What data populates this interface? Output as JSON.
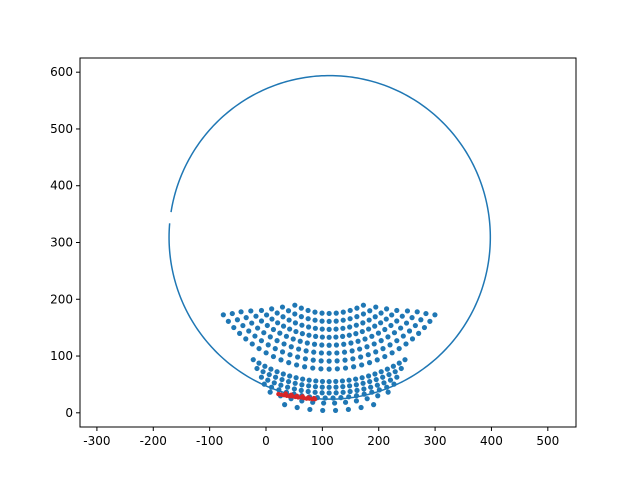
{
  "chart_data": {
    "type": "scatter",
    "title": "",
    "xlabel": "",
    "ylabel": "",
    "xlim": [
      -330,
      550
    ],
    "ylim": [
      -25,
      625
    ],
    "grid": false,
    "xticks": [
      -300,
      -200,
      -100,
      0,
      100,
      200,
      300,
      400,
      500
    ],
    "yticks": [
      0,
      100,
      200,
      300,
      400,
      500,
      600
    ],
    "colors": {
      "blue": "#1f77b4",
      "red": "#d62728"
    },
    "circle": {
      "name": "",
      "color": "#1f77b4",
      "cx": 113,
      "cy": 309,
      "r": 285,
      "gap_deg": [
        171,
        175
      ]
    },
    "arc_series": [
      {
        "name": "",
        "color": "#1f77b4",
        "cx": 112,
        "cy": 309,
        "r": 134,
        "start_deg": 243,
        "end_deg": 297,
        "points": 11
      },
      {
        "name": "",
        "color": "#1f77b4",
        "cx": 112,
        "cy": 309,
        "r": 148,
        "start_deg": 236,
        "end_deg": 304,
        "points": 15
      },
      {
        "name": "",
        "color": "#1f77b4",
        "cx": 112,
        "cy": 309,
        "r": 162,
        "start_deg": 231,
        "end_deg": 309,
        "points": 19
      },
      {
        "name": "",
        "color": "#1f77b4",
        "cx": 112,
        "cy": 309,
        "r": 176,
        "start_deg": 227,
        "end_deg": 313,
        "points": 23
      },
      {
        "name": "",
        "color": "#1f77b4",
        "cx": 112,
        "cy": 309,
        "r": 190,
        "start_deg": 223,
        "end_deg": 317,
        "points": 25
      },
      {
        "name": "",
        "color": "#1f77b4",
        "cx": 112,
        "cy": 309,
        "r": 204,
        "start_deg": 220,
        "end_deg": 320,
        "points": 27
      },
      {
        "name": "",
        "color": "#1f77b4",
        "cx": 112,
        "cy": 309,
        "r": 218,
        "start_deg": 218,
        "end_deg": 322,
        "points": 29
      },
      {
        "name": "",
        "color": "#1f77b4",
        "cx": 112,
        "cy": 309,
        "r": 232,
        "start_deg": 216,
        "end_deg": 324,
        "points": 31
      },
      {
        "name": "",
        "color": "#1f77b4",
        "cx": 112,
        "cy": 309,
        "r": 254,
        "start_deg": 238,
        "end_deg": 302,
        "points": 25
      },
      {
        "name": "",
        "color": "#1f77b4",
        "cx": 112,
        "cy": 309,
        "r": 264,
        "start_deg": 241,
        "end_deg": 299,
        "points": 23
      },
      {
        "name": "",
        "color": "#1f77b4",
        "cx": 112,
        "cy": 309,
        "r": 274,
        "start_deg": 244,
        "end_deg": 296,
        "points": 21
      },
      {
        "name": "",
        "color": "#1f77b4",
        "cx": 112,
        "cy": 309,
        "r": 283,
        "start_deg": 246,
        "end_deg": 294,
        "points": 18
      },
      {
        "name": "",
        "color": "#1f77b4",
        "cx": 112,
        "cy": 309,
        "r": 292,
        "start_deg": 249,
        "end_deg": 291,
        "points": 12
      },
      {
        "name": "",
        "color": "#1f77b4",
        "cx": 112,
        "cy": 309,
        "r": 305,
        "start_deg": 255,
        "end_deg": 285,
        "points": 8
      }
    ],
    "highlight_series": {
      "name": "",
      "color": "#d62728",
      "points": [
        [
          22,
          33
        ],
        [
          27,
          32
        ],
        [
          32,
          31
        ],
        [
          37,
          30
        ],
        [
          42,
          29
        ],
        [
          47,
          29
        ],
        [
          52,
          28
        ],
        [
          57,
          27
        ],
        [
          62,
          27
        ],
        [
          67,
          26
        ],
        [
          72,
          25
        ],
        [
          77,
          25
        ],
        [
          82,
          24
        ],
        [
          87,
          24
        ],
        [
          35,
          34
        ],
        [
          45,
          32
        ],
        [
          55,
          30
        ],
        [
          65,
          29
        ],
        [
          75,
          27
        ],
        [
          85,
          26
        ]
      ]
    }
  }
}
